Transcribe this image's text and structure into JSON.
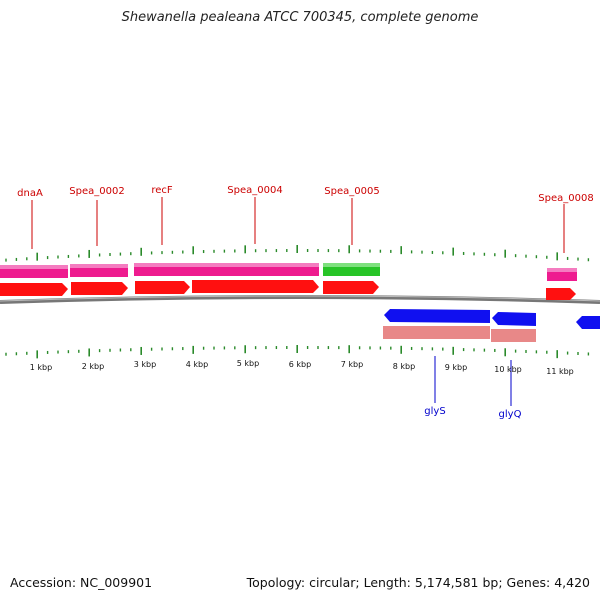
{
  "title": "Shewanella pealeana ATCC 700345, complete genome",
  "footer": {
    "accession": "Accession: NC_009901",
    "summary": "Topology: circular; Length: 5,174,581 bp; Genes: 4,420"
  },
  "colors": {
    "forward_gene": "#ff1010",
    "cds_pink": "#ee1b8f",
    "rrna_green": "#27c427",
    "reverse_gene": "#1010f0",
    "reverse_cds": "#e88888",
    "tick_green": "#2a8a2a",
    "backbone": "#777777",
    "forward_label": "#cc0000",
    "reverse_label": "#0000cc"
  },
  "scale_labels": [
    "1 kbp",
    "2 kbp",
    "3 kbp",
    "4 kbp",
    "5 kbp",
    "6 kbp",
    "7 kbp",
    "8 kbp",
    "9 kbp",
    "10 kbp",
    "11 kbp"
  ],
  "features": {
    "forward_labels": [
      {
        "name": "dnaA"
      },
      {
        "name": "Spea_0002"
      },
      {
        "name": "recF"
      },
      {
        "name": "Spea_0004"
      },
      {
        "name": "Spea_0005"
      },
      {
        "name": "Spea_0008"
      }
    ],
    "reverse_labels": [
      {
        "name": "glyS"
      },
      {
        "name": "glyQ"
      }
    ]
  }
}
